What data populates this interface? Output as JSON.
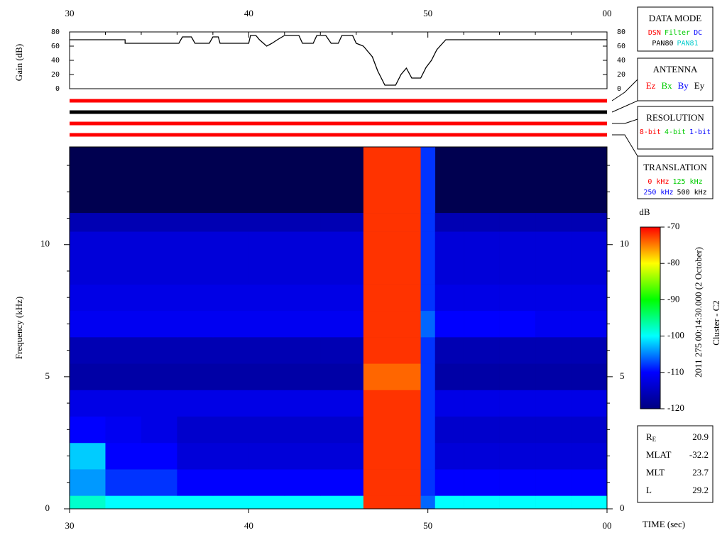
{
  "chart_data": [
    {
      "type": "line",
      "ylabel": "Gain (dB)",
      "color": "#000000",
      "xlim": [
        30,
        60
      ],
      "xticks": [
        30,
        40,
        50,
        {
          "value": 60,
          "label": "00"
        }
      ],
      "xticks_minor": [
        32,
        34,
        36,
        38,
        42,
        44,
        46,
        48,
        52,
        54,
        56,
        58
      ],
      "ylim": [
        0,
        80
      ],
      "yticks": [
        0,
        20,
        40,
        60,
        80
      ],
      "x": [
        30,
        33.1,
        33.1,
        36.1,
        36.3,
        36.8,
        37,
        37.8,
        38,
        38.3,
        38.4,
        40,
        40.1,
        40.4,
        40.6,
        41,
        41.3,
        41.6,
        42,
        42.8,
        43,
        43.6,
        43.8,
        44.3,
        44.6,
        45,
        45.2,
        45.8,
        46,
        46.4,
        46.9,
        47.2,
        47.6,
        48.2,
        48.5,
        48.8,
        49.1,
        49.6,
        49.9,
        50.2,
        50.5,
        51,
        60
      ],
      "values": [
        69,
        69,
        64,
        64,
        73,
        73,
        64,
        64,
        73,
        73,
        64,
        64,
        75,
        75,
        69,
        60,
        64,
        69,
        75,
        75,
        64,
        64,
        75,
        75,
        64,
        64,
        75,
        75,
        64,
        60,
        45,
        25,
        5,
        5,
        20,
        29,
        15,
        15,
        30,
        40,
        55,
        69,
        69
      ]
    },
    {
      "type": "heatmap",
      "ylabel": "Frequency (kHz)",
      "xlabel": "TIME (sec)",
      "xlim": [
        30,
        60
      ],
      "xticks": [
        30,
        40,
        50,
        {
          "value": 60,
          "label": "00"
        }
      ],
      "ylim": [
        0,
        13.7
      ],
      "yticks": [
        0,
        5,
        10
      ],
      "yticks_minor": [
        1,
        2,
        3,
        4,
        6,
        7,
        8,
        9,
        11,
        12,
        13
      ],
      "x_bins": [
        30,
        32,
        34,
        36,
        38,
        40,
        42,
        44,
        46.4,
        49.6,
        50.4,
        52,
        54,
        56,
        58,
        60
      ],
      "y_bins": [
        0,
        0.5,
        1.5,
        2.5,
        3.5,
        4.5,
        5.5,
        6.5,
        7.5,
        8.5,
        9.5,
        10.5,
        11.2,
        13.7
      ],
      "values": [
        [
          -98,
          -100,
          -100,
          -100,
          -100,
          -100,
          -100,
          -100,
          -72,
          -106,
          -100,
          -100,
          -100,
          -100,
          -100
        ],
        [
          -104,
          -108,
          -108,
          -110,
          -110,
          -110,
          -110,
          -110,
          -72,
          -108,
          -110,
          -110,
          -110,
          -110,
          -110
        ],
        [
          -102,
          -110,
          -110,
          -113,
          -113,
          -113,
          -113,
          -113,
          -72,
          -108,
          -113,
          -113,
          -113,
          -113,
          -113
        ],
        [
          -110,
          -111,
          -112,
          -114,
          -114,
          -114,
          -114,
          -114,
          -72,
          -108,
          -114,
          -114,
          -114,
          -114,
          -114
        ],
        [
          -112,
          -112,
          -112,
          -112,
          -112,
          -112,
          -112,
          -112,
          -72,
          -108,
          -112,
          -112,
          -112,
          -112,
          -112
        ],
        [
          -117,
          -117,
          -117,
          -117,
          -117,
          -117,
          -117,
          -117,
          -74,
          -108,
          -117,
          -117,
          -117,
          -117,
          -117
        ],
        [
          -116,
          -116,
          -116,
          -116,
          -116,
          -116,
          -116,
          -116,
          -72,
          -108,
          -116,
          -116,
          -116,
          -116,
          -116
        ],
        [
          -111,
          -111,
          -111,
          -111,
          -111,
          -111,
          -111,
          -111,
          -72,
          -106,
          -110,
          -110,
          -110,
          -111,
          -111
        ],
        [
          -112,
          -112,
          -112,
          -112,
          -112,
          -112,
          -112,
          -112,
          -72,
          -108,
          -112,
          -112,
          -112,
          -112,
          -112
        ],
        [
          -113,
          -113,
          -113,
          -113,
          -113,
          -113,
          -113,
          -113,
          -72,
          -108,
          -113,
          -113,
          -113,
          -113,
          -113
        ],
        [
          -113,
          -113,
          -113,
          -113,
          -113,
          -113,
          -113,
          -113,
          -72,
          -108,
          -113,
          -113,
          -113,
          -113,
          -113
        ],
        [
          -116,
          -116,
          -116,
          -116,
          -116,
          -116,
          -116,
          -116,
          -72,
          -108,
          -116,
          -116,
          -116,
          -116,
          -116
        ],
        [
          null,
          null,
          null,
          null,
          null,
          null,
          null,
          null,
          -72,
          -108,
          null,
          null,
          null,
          null,
          null
        ]
      ],
      "background": "#000050",
      "colormap": [
        "#000080",
        "#0000ff",
        "#00ffff",
        "#00ff00",
        "#ffff00",
        "#ff0000"
      ],
      "colorbar": {
        "label": "dB",
        "lim": [
          -120,
          -70
        ],
        "ticks": [
          -120,
          -110,
          -100,
          -90,
          -80,
          -70
        ]
      }
    }
  ],
  "annotations": {
    "date": "2011 275 00:14:30.000 (2 October)",
    "spacecraft": "Cluster - C2"
  },
  "panels": [
    {
      "title": "DATA MODE",
      "rows": [
        [
          {
            "text": "DSN",
            "color": "#ff0000"
          },
          {
            "text": "Filter",
            "color": "#00cc00"
          },
          {
            "text": "DC",
            "color": "#0000ff"
          }
        ],
        [
          {
            "text": "PAN80",
            "color": "#000000"
          },
          {
            "text": "PAN81",
            "color": "#00cccc"
          }
        ]
      ]
    },
    {
      "title": "ANTENNA",
      "rows": [
        [
          {
            "text": "Ez",
            "color": "#ff0000"
          },
          {
            "text": "Bx",
            "color": "#00cc00"
          },
          {
            "text": "By",
            "color": "#0000ff"
          },
          {
            "text": "Ey",
            "color": "#000000"
          }
        ]
      ]
    },
    {
      "title": "RESOLUTION",
      "rows": [
        [
          {
            "text": "8-bit",
            "color": "#ff0000"
          },
          {
            "text": "4-bit",
            "color": "#00cc00"
          },
          {
            "text": "1-bit",
            "color": "#0000ff"
          }
        ]
      ]
    },
    {
      "title": "TRANSLATION",
      "rows": [
        [
          {
            "text": "0 kHz",
            "color": "#ff0000"
          },
          {
            "text": "125 kHz",
            "color": "#00cc00"
          }
        ],
        [
          {
            "text": "250 kHz",
            "color": "#0000ff"
          },
          {
            "text": "500 kHz",
            "color": "#000000"
          }
        ]
      ]
    }
  ],
  "orbit": [
    {
      "label": "R",
      "subscript": "E",
      "value": 20.9
    },
    {
      "label": "MLAT",
      "value": -32.2
    },
    {
      "label": "MLT",
      "value": 23.7
    },
    {
      "label": "L",
      "value": 29.2
    }
  ]
}
